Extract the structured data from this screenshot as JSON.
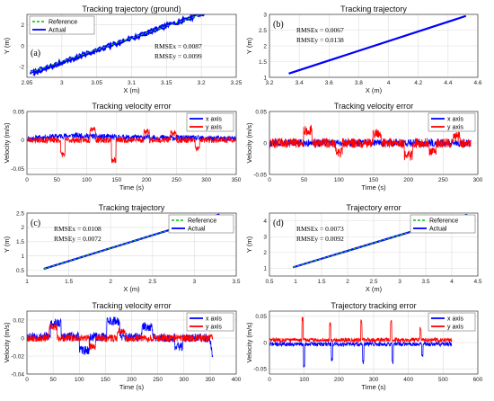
{
  "colors": {
    "actual": "#0000ff",
    "reference": "#22cc22",
    "x_axis": "#0000ff",
    "y_axis": "#ff0000",
    "grid": "#dddddd"
  },
  "chart_data": [
    {
      "id": "traj_a",
      "type": "line",
      "title": "Tracking trajectory (ground)",
      "xlabel": "X (m)",
      "ylabel": "Y (m)",
      "xlim": [
        2.95,
        3.25
      ],
      "ylim": [
        -3,
        3
      ],
      "xticks": [
        2.95,
        3,
        3.05,
        3.1,
        3.15,
        3.2,
        3.25
      ],
      "yticks": [
        -2,
        0,
        2
      ],
      "tag": "(a)",
      "rmse": [
        "RMSEx = 0.0087",
        "RMSEy = 0.0099"
      ],
      "legend": [
        "Reference",
        "Actual"
      ],
      "legend_pos": "top-left",
      "series": [
        {
          "name": "Reference",
          "x": [
            2.955,
            3.2
          ],
          "y": [
            -2.5,
            3
          ]
        },
        {
          "name": "Actual",
          "x": [
            2.955,
            3.2
          ],
          "y": [
            -2.6,
            3.1
          ],
          "band": 0.35
        }
      ]
    },
    {
      "id": "traj_b",
      "type": "line",
      "title": "Tracking trajectory",
      "xlabel": "X (m)",
      "ylabel": "Y (m)",
      "xlim": [
        3.2,
        4.6
      ],
      "ylim": [
        1,
        3
      ],
      "xticks": [
        3.2,
        3.4,
        3.6,
        3.8,
        4,
        4.2,
        4.4,
        4.6
      ],
      "yticks": [
        1,
        1.5,
        2,
        2.5,
        3
      ],
      "tag": "(b)",
      "rmse": [
        "RMSEx = 0.0067",
        "RMSEy = 0.0138"
      ],
      "series": [
        {
          "name": "Actual",
          "x": [
            3.33,
            4.52
          ],
          "y": [
            1.12,
            2.95
          ]
        }
      ]
    },
    {
      "id": "vel_a",
      "type": "line",
      "title": "Tracking velocity error",
      "xlabel": "Time (s)",
      "ylabel": "Velocity (m/s)",
      "xlim": [
        0,
        350
      ],
      "ylim": [
        -0.06,
        0.05
      ],
      "xticks": [
        0,
        50,
        100,
        150,
        200,
        250,
        300,
        350
      ],
      "yticks": [
        -0.05,
        0,
        0.05
      ],
      "legend": [
        "x axis",
        "y axis"
      ],
      "legend_pos": "top-right",
      "series": [
        {
          "name": "x axis",
          "seed": 11,
          "tmax": 350,
          "base": [
            [
              0,
              0.002
            ],
            [
              40,
              0.006
            ],
            [
              80,
              0.008
            ],
            [
              150,
              0.005
            ],
            [
              250,
              0.004
            ],
            [
              350,
              0.002
            ]
          ],
          "noise": 0.005,
          "pulses": []
        },
        {
          "name": "y axis",
          "seed": 23,
          "tmax": 350,
          "base": [
            [
              0,
              0.0
            ],
            [
              350,
              0.0
            ]
          ],
          "noise": 0.005,
          "pulses": [
            [
              60,
              -0.025,
              8
            ],
            [
              110,
              0.02,
              10
            ],
            [
              145,
              -0.035,
              8
            ],
            [
              200,
              0.015,
              10
            ],
            [
              245,
              0.012,
              10
            ],
            [
              285,
              -0.015,
              8
            ]
          ]
        }
      ]
    },
    {
      "id": "vel_b",
      "type": "line",
      "title": "Tracking velocity error",
      "xlabel": "Time (s)",
      "ylabel": "Velocity (m/s)",
      "xlim": [
        0,
        300
      ],
      "ylim": [
        -0.05,
        0.05
      ],
      "xticks": [
        0,
        50,
        100,
        150,
        200,
        250,
        300
      ],
      "yticks": [
        -0.05,
        0,
        0.05
      ],
      "legend": [
        "x axis",
        "y axis"
      ],
      "legend_pos": "top-right",
      "series": [
        {
          "name": "x axis",
          "seed": 31,
          "tmax": 290,
          "base": [
            [
              0,
              0.0
            ],
            [
              290,
              0.0
            ]
          ],
          "noise": 0.006,
          "pulses": []
        },
        {
          "name": "y axis",
          "seed": 47,
          "tmax": 290,
          "base": [
            [
              0,
              0.0
            ],
            [
              290,
              0.0
            ]
          ],
          "noise": 0.008,
          "pulses": [
            [
              55,
              0.02,
              12
            ],
            [
              100,
              -0.015,
              10
            ],
            [
              155,
              0.015,
              12
            ],
            [
              200,
              -0.02,
              12
            ],
            [
              235,
              -0.015,
              10
            ],
            [
              270,
              0.01,
              10
            ]
          ]
        }
      ]
    },
    {
      "id": "traj_c",
      "type": "line",
      "title": "Tracking trajectory",
      "xlabel": "X (m)",
      "ylabel": "Y (m)",
      "xlim": [
        1,
        3.5
      ],
      "ylim": [
        0.3,
        2.5
      ],
      "xticks": [
        1,
        1.5,
        2,
        2.5,
        3,
        3.5
      ],
      "yticks": [
        0.5,
        1,
        1.5,
        2,
        2.5
      ],
      "tag": "(c)",
      "rmse": [
        "RMSEx = 0.0108",
        "RMSEy = 0.0072"
      ],
      "legend": [
        "Reference",
        "Actual"
      ],
      "legend_pos": "top-right",
      "series": [
        {
          "name": "Reference",
          "x": [
            1.2,
            3.3
          ],
          "y": [
            0.55,
            2.45
          ]
        },
        {
          "name": "Actual",
          "x": [
            1.2,
            3.3
          ],
          "y": [
            0.55,
            2.45
          ]
        }
      ]
    },
    {
      "id": "traj_d",
      "type": "line",
      "title": "Trajectory error",
      "xlabel": "X (m)",
      "ylabel": "Y (m)",
      "xlim": [
        0.5,
        4.5
      ],
      "ylim": [
        0.5,
        4.5
      ],
      "xticks": [
        0.5,
        1,
        1.5,
        2,
        2.5,
        3,
        3.5,
        4,
        4.5
      ],
      "yticks": [
        1,
        2,
        3,
        4
      ],
      "tag": "(d)",
      "rmse": [
        "RMSEx = 0.0073",
        "RMSEy = 0.0092"
      ],
      "legend": [
        "Reference",
        "Actual"
      ],
      "legend_pos": "top-right",
      "series": [
        {
          "name": "Reference",
          "x": [
            0.95,
            4.3
          ],
          "y": [
            1.05,
            4.4
          ]
        },
        {
          "name": "Actual",
          "x": [
            0.95,
            4.3
          ],
          "y": [
            1.05,
            4.4
          ]
        }
      ]
    },
    {
      "id": "vel_c",
      "type": "line",
      "title": "Tracking velocity error",
      "xlabel": "Time (s)",
      "ylabel": "Velocity (m/s)",
      "xlim": [
        0,
        400
      ],
      "ylim": [
        -0.04,
        0.03
      ],
      "xticks": [
        0,
        50,
        100,
        150,
        200,
        250,
        300,
        350,
        400
      ],
      "yticks": [
        -0.04,
        -0.02,
        0,
        0.02
      ],
      "legend": [
        "x axis",
        "y axis"
      ],
      "legend_pos": "top-right",
      "series": [
        {
          "name": "x axis",
          "seed": 53,
          "tmax": 355,
          "base": [
            [
              0,
              0.002
            ],
            [
              350,
              0.0
            ],
            [
              355,
              -0.025
            ]
          ],
          "noise": 0.005,
          "pulses": [
            [
              55,
              0.015,
              20
            ],
            [
              110,
              -0.015,
              20
            ],
            [
              165,
              0.018,
              25
            ],
            [
              230,
              0.012,
              20
            ],
            [
              290,
              -0.01,
              15
            ]
          ]
        },
        {
          "name": "y axis",
          "seed": 67,
          "tmax": 355,
          "base": [
            [
              0,
              0.0
            ],
            [
              355,
              0.0
            ]
          ],
          "noise": 0.004,
          "pulses": [
            [
              50,
              0.012,
              15
            ],
            [
              125,
              -0.01,
              12
            ],
            [
              180,
              0.008,
              15
            ]
          ]
        }
      ]
    },
    {
      "id": "vel_d",
      "type": "line",
      "title": "Trajectory tracking error",
      "xlabel": "Time (s)",
      "ylabel": "Velocity (m/s)",
      "xlim": [
        0,
        600
      ],
      "ylim": [
        -0.06,
        0.06
      ],
      "xticks": [
        0,
        100,
        200,
        300,
        400,
        500,
        600
      ],
      "yticks": [
        -0.05,
        0,
        0.05
      ],
      "legend": [
        "x axis",
        "y axis"
      ],
      "legend_pos": "top-right",
      "series": [
        {
          "name": "x axis",
          "seed": 71,
          "tmax": 525,
          "base": [
            [
              0,
              -0.003
            ],
            [
              525,
              -0.003
            ]
          ],
          "noise": 0.004,
          "pulses": [
            [
              100,
              -0.045,
              4
            ],
            [
              180,
              -0.03,
              4
            ],
            [
              270,
              -0.035,
              4
            ],
            [
              355,
              -0.035,
              4
            ],
            [
              440,
              -0.02,
              4
            ]
          ]
        },
        {
          "name": "y axis",
          "seed": 83,
          "tmax": 525,
          "base": [
            [
              0,
              0.005
            ],
            [
              525,
              0.005
            ]
          ],
          "noise": 0.004,
          "pulses": [
            [
              95,
              0.04,
              4
            ],
            [
              175,
              0.03,
              4
            ],
            [
              265,
              0.035,
              4
            ],
            [
              350,
              0.035,
              4
            ],
            [
              435,
              0.02,
              4
            ]
          ]
        }
      ]
    }
  ]
}
